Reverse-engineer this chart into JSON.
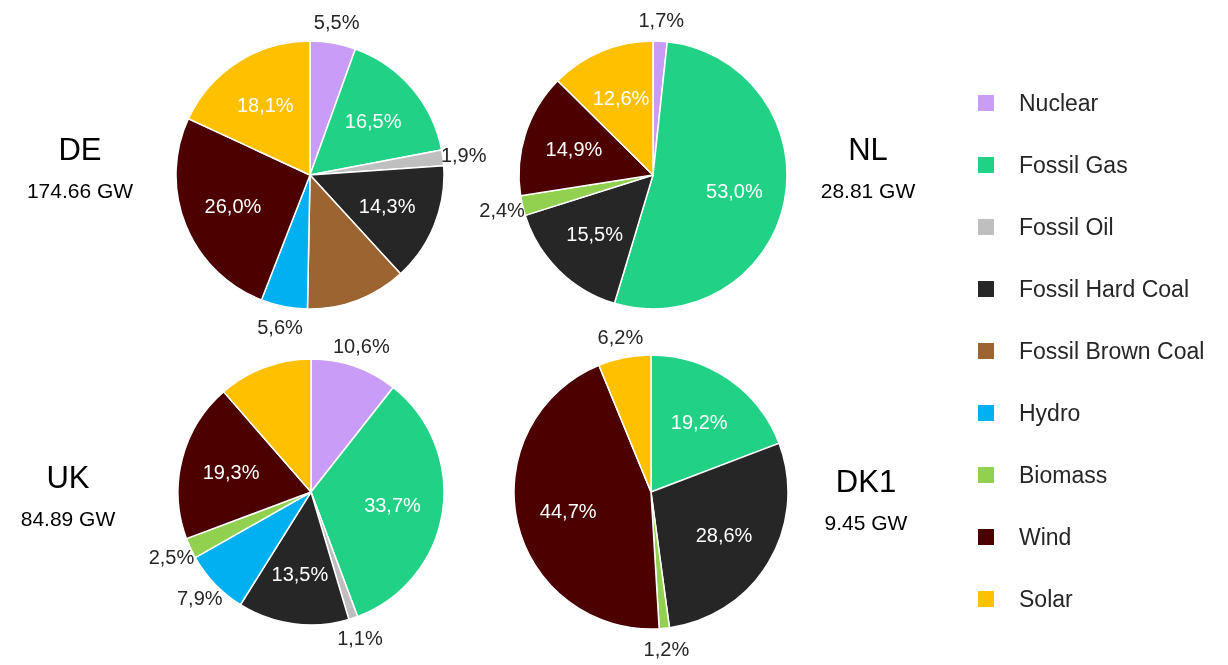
{
  "chart_data": [
    {
      "type": "pie",
      "title": "DE",
      "subtitle": "174.66 GW",
      "legend": "right",
      "categories": [
        "Nuclear",
        "Fossil Gas",
        "Fossil Oil",
        "Fossil Hard Coal",
        "Fossil Brown Coal",
        "Hydro",
        "Biomass",
        "Wind",
        "Solar"
      ],
      "values": [
        5.5,
        16.5,
        1.9,
        14.3,
        12.1,
        5.6,
        null,
        26.0,
        18.1
      ],
      "colors": [
        "#c99cf8",
        "#21d186",
        "#bfbfbf",
        "#262626",
        "#9b6430",
        "#00b0f0",
        "#92d050",
        "#4c0000",
        "#ffc000"
      ],
      "value_labels": [
        "5,5%",
        "16,5%",
        "1,9%",
        "14,3%",
        null,
        "5,6%",
        null,
        "26,0%",
        "18,1%"
      ]
    },
    {
      "type": "pie",
      "title": "NL",
      "subtitle": "28.81 GW",
      "categories": [
        null,
        null,
        null,
        null,
        null,
        null
      ],
      "values": [
        1.7,
        53.0,
        15.5,
        2.4,
        14.9,
        12.6
      ],
      "colors": [
        "#c99cf8",
        "#21d186",
        "#262626",
        "#92d050",
        "#4c0000",
        "#ffc000"
      ],
      "value_labels": [
        "1,7%",
        "53,0%",
        "15,5%",
        "2,4%",
        "14,9%",
        "12,6%"
      ]
    },
    {
      "type": "pie",
      "title": "UK",
      "subtitle": "84.89 GW",
      "categories": [
        null,
        null,
        null,
        null,
        null,
        null,
        null,
        null
      ],
      "values": [
        10.6,
        33.7,
        1.1,
        13.5,
        7.9,
        2.5,
        19.3,
        11.4
      ],
      "colors": [
        "#c99cf8",
        "#21d186",
        "#bfbfbf",
        "#262626",
        "#00b0f0",
        "#92d050",
        "#4c0000",
        "#ffc000"
      ],
      "value_labels": [
        "10,6%",
        "33,7%",
        "1,1%",
        "13,5%",
        "7,9%",
        "2,5%",
        "19,3%",
        null
      ]
    },
    {
      "type": "pie",
      "title": "DK1",
      "subtitle": "9.45 GW",
      "categories": [
        null,
        null,
        null,
        null,
        null
      ],
      "values": [
        19.2,
        28.6,
        1.2,
        44.7,
        6.2
      ],
      "colors": [
        "#21d186",
        "#262626",
        "#92d050",
        "#4c0000",
        "#ffc000"
      ],
      "value_labels": [
        "19,2%",
        "28,6%",
        "1,2%",
        "44,7%",
        "6,2%"
      ]
    }
  ]
}
